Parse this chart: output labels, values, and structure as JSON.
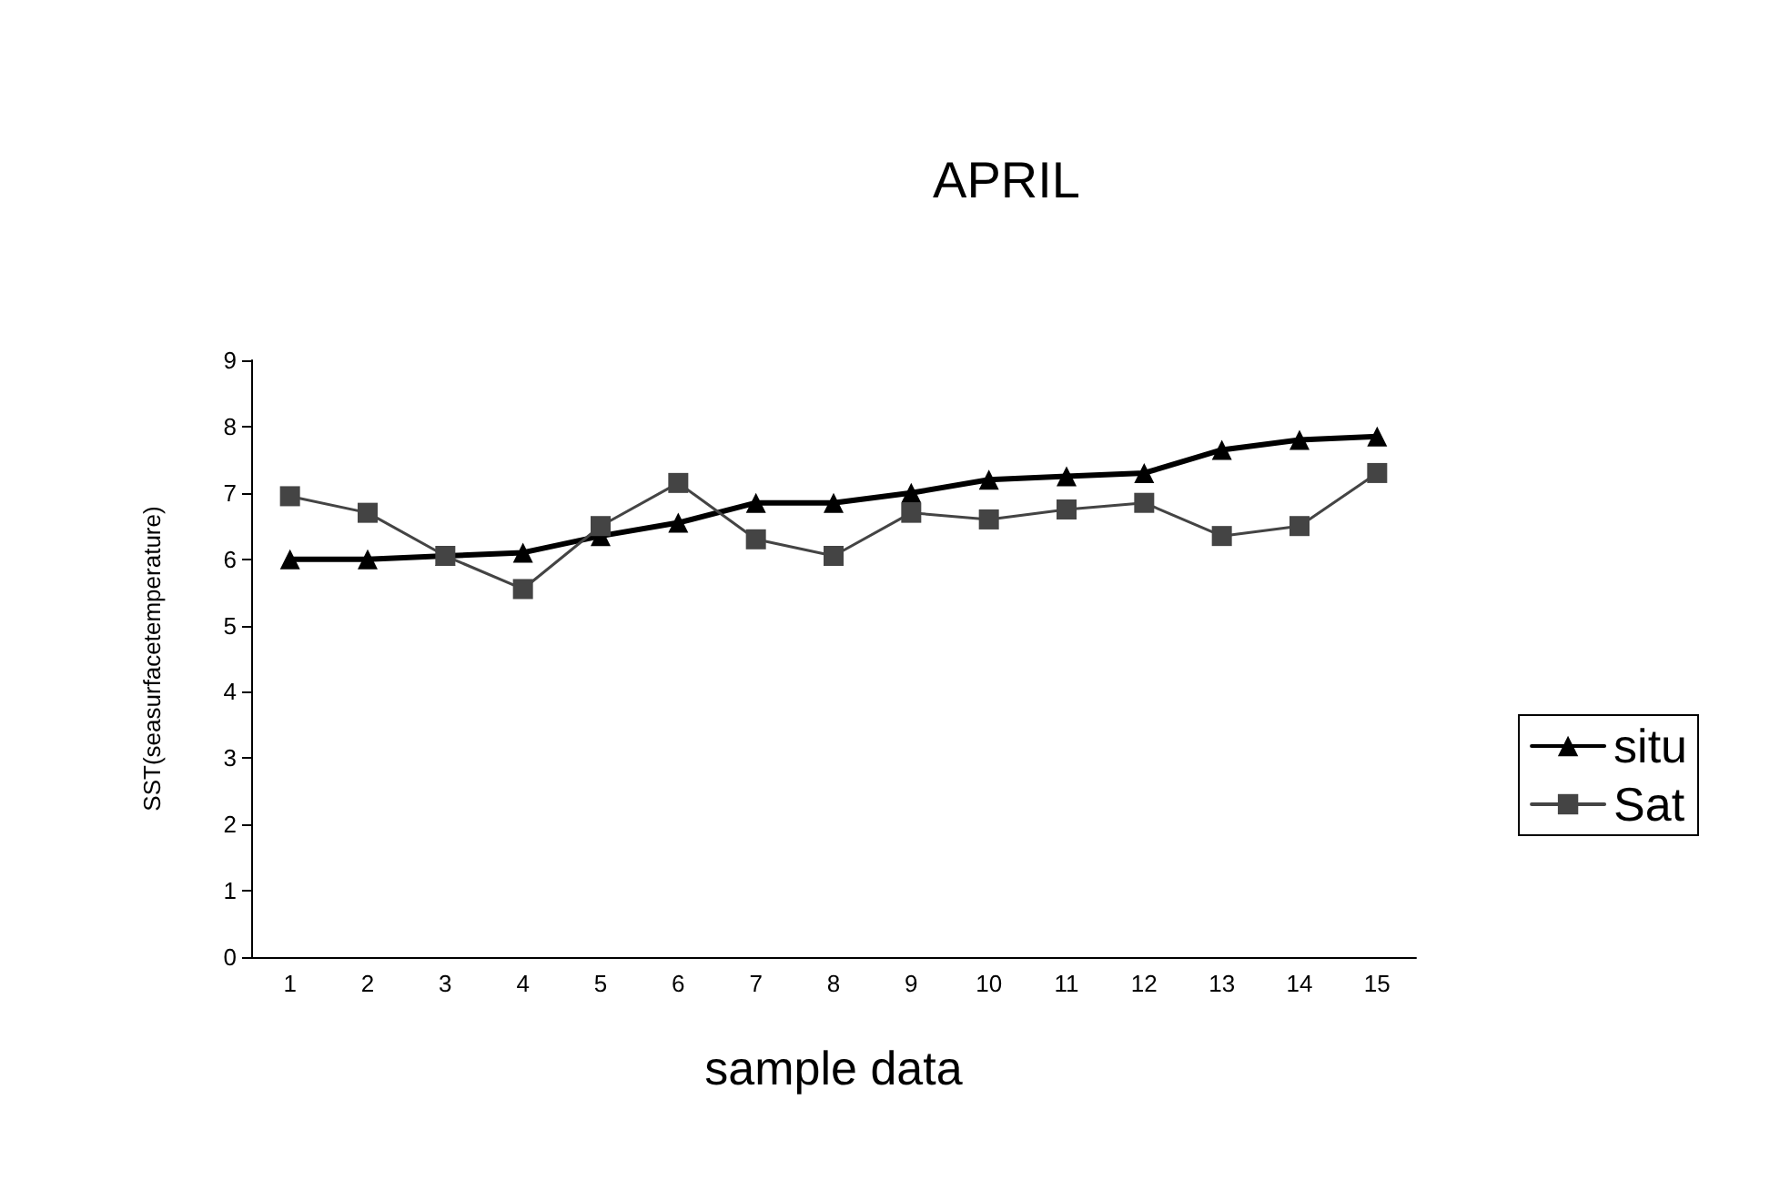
{
  "chart_data": {
    "type": "line",
    "title": "APRIL",
    "xlabel": "sample data",
    "ylabel": "SST(seasurfacetemperature)",
    "categories": [
      "1",
      "2",
      "3",
      "4",
      "5",
      "6",
      "7",
      "8",
      "9",
      "10",
      "11",
      "12",
      "13",
      "14",
      "15"
    ],
    "series": [
      {
        "name": "situ",
        "color": "#000000",
        "marker": "triangle",
        "values": [
          6.0,
          6.0,
          6.05,
          6.1,
          6.35,
          6.55,
          6.85,
          6.85,
          7.0,
          7.2,
          7.25,
          7.3,
          7.65,
          7.8,
          7.85
        ]
      },
      {
        "name": "Sat",
        "color": "#444444",
        "marker": "square",
        "values": [
          6.95,
          6.7,
          6.05,
          5.55,
          6.5,
          7.15,
          6.3,
          6.05,
          6.7,
          6.6,
          6.75,
          6.85,
          6.35,
          6.5,
          7.3
        ]
      }
    ],
    "ylim": [
      0,
      9
    ],
    "yticks": [
      0,
      1,
      2,
      3,
      4,
      5,
      6,
      7,
      8,
      9
    ],
    "grid": false,
    "legend": "right"
  }
}
